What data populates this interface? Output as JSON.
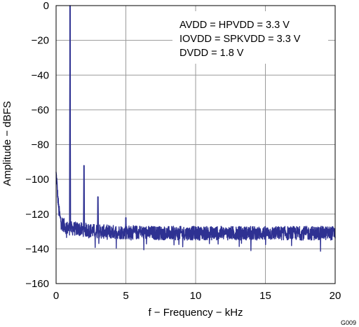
{
  "chart_data": {
    "type": "line",
    "xlabel": "f − Frequency − kHz",
    "ylabel": "Amplitude − dBFS",
    "xlim": [
      0,
      20
    ],
    "ylim": [
      -160,
      0
    ],
    "xticks": [
      0,
      5,
      10,
      15,
      20
    ],
    "yticks": [
      0,
      -20,
      -40,
      -60,
      -80,
      -100,
      -120,
      -140,
      -160
    ],
    "xtick_labels": [
      "0",
      "5",
      "10",
      "15",
      "20"
    ],
    "ytick_labels": [
      "0",
      "−20",
      "−40",
      "−60",
      "−80",
      "−100",
      "−120",
      "−140",
      "−160"
    ],
    "grid": true,
    "annotations": [
      "AVDD = HPVDD = 3.3 V",
      "IOVDD = SPKVDD = 3.3 V",
      "DVDD = 1.8 V"
    ],
    "figure_id": "G009",
    "line_color": "#2e3192",
    "series": [
      {
        "noise_floor": [
          [
            0.0,
            -97
          ],
          [
            0.05,
            -101
          ],
          [
            0.1,
            -108
          ],
          [
            0.2,
            -118
          ],
          [
            0.3,
            -123
          ],
          [
            0.5,
            -126
          ],
          [
            0.8,
            -128
          ],
          [
            2,
            -129
          ],
          [
            3,
            -130
          ],
          [
            5,
            -130.5
          ],
          [
            8,
            -131
          ],
          [
            10,
            -131
          ],
          [
            15,
            -131
          ],
          [
            20,
            -131
          ]
        ],
        "noise_spread_db": 4,
        "peaks": [
          {
            "f": 1.0,
            "dB": 0
          },
          {
            "f": 2.0,
            "dB": -92
          },
          {
            "f": 3.0,
            "dB": -110
          },
          {
            "f": 5.0,
            "dB": -122
          },
          {
            "f": 6.0,
            "dB": -127
          }
        ]
      }
    ]
  }
}
